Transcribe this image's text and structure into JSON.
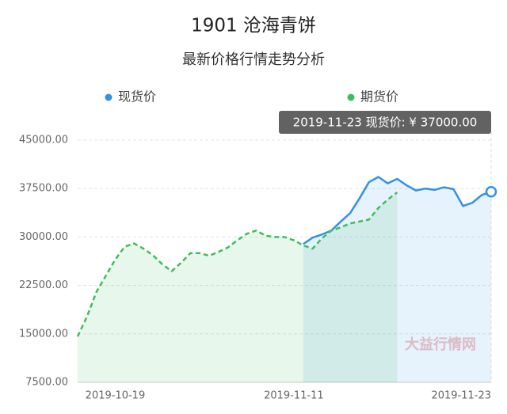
{
  "chart_data": {
    "type": "line",
    "title": "1901 沧海青饼",
    "subtitle": "最新价格行情走势分析",
    "tooltip": "2019-11-23 现货价: ¥ 37000.00",
    "watermark": "大益行情网",
    "categories": [
      null,
      null,
      null,
      null,
      "2019-10-19",
      null,
      null,
      null,
      null,
      null,
      null,
      null,
      null,
      null,
      null,
      null,
      null,
      null,
      null,
      null,
      null,
      null,
      null,
      "2019-11-11",
      null,
      null,
      null,
      null,
      null,
      null,
      null,
      null,
      null,
      null,
      null,
      null,
      null,
      null,
      null,
      null,
      null,
      null,
      null,
      null,
      "2019-11-23"
    ],
    "series": [
      {
        "name": "现货价",
        "color": "#3590e6",
        "dashed": false,
        "values": [
          null,
          null,
          null,
          null,
          null,
          null,
          null,
          null,
          null,
          null,
          null,
          null,
          null,
          null,
          null,
          null,
          null,
          null,
          null,
          null,
          null,
          null,
          null,
          null,
          28900,
          29900,
          30400,
          31000,
          32400,
          33700,
          36000,
          38500,
          39300,
          38300,
          39000,
          38000,
          37200,
          37500,
          37300,
          37700,
          37400,
          34800,
          35300,
          36500,
          37000
        ]
      },
      {
        "name": "期货价",
        "color": "#3cbf5a",
        "dashed": true,
        "values": [
          14600,
          17700,
          21500,
          24000,
          26500,
          28500,
          29000,
          28200,
          27200,
          25800,
          24700,
          26000,
          27500,
          27500,
          27100,
          27700,
          28400,
          29500,
          30500,
          31000,
          30200,
          30000,
          30000,
          29500,
          28700,
          28200,
          29800,
          31000,
          31500,
          32100,
          32400,
          32700,
          34500,
          35800,
          36900,
          null,
          null,
          null,
          null,
          null,
          null,
          null,
          null,
          null,
          null
        ]
      }
    ],
    "ylim": [
      7500,
      45000
    ],
    "yticks": [
      {
        "value": 7500,
        "label": "7500.00"
      },
      {
        "value": 15000,
        "label": "15000.00"
      },
      {
        "value": 22500,
        "label": "22500.00"
      },
      {
        "value": 30000,
        "label": "30000.00"
      },
      {
        "value": 37500,
        "label": "37500.00"
      },
      {
        "value": 45000,
        "label": "45000.00"
      }
    ],
    "grid": true
  }
}
